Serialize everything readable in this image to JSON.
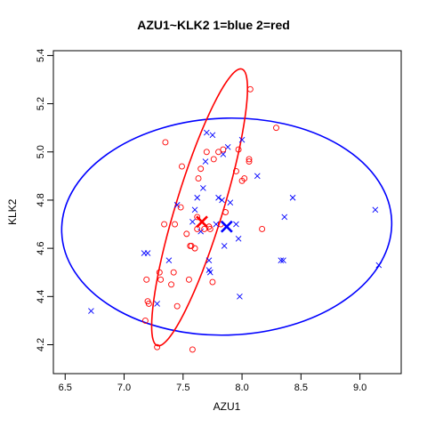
{
  "chart_data": {
    "type": "scatter",
    "title": "AZU1~KLK2 1=blue 2=red",
    "xlabel": "AZU1",
    "ylabel": "KLK2",
    "xlim": [
      6.4,
      9.35
    ],
    "ylim": [
      4.08,
      5.42
    ],
    "x_ticks": [
      "6.5",
      "7.0",
      "7.5",
      "8.0",
      "8.5",
      "9.0"
    ],
    "y_ticks": [
      "4.2",
      "4.4",
      "4.6",
      "4.8",
      "5.0",
      "5.2",
      "5.4"
    ],
    "grid": false,
    "legend": "none",
    "series": [
      {
        "name": "1",
        "color": "#0000ff",
        "marker": "x",
        "points": [
          [
            6.72,
            4.34
          ],
          [
            7.17,
            4.58
          ],
          [
            7.2,
            4.58
          ],
          [
            7.28,
            4.37
          ],
          [
            7.38,
            4.55
          ],
          [
            7.45,
            4.78
          ],
          [
            7.58,
            4.71
          ],
          [
            7.6,
            4.76
          ],
          [
            7.62,
            4.81
          ],
          [
            7.65,
            4.67
          ],
          [
            7.67,
            4.85
          ],
          [
            7.69,
            4.96
          ],
          [
            7.7,
            5.08
          ],
          [
            7.72,
            4.55
          ],
          [
            7.72,
            4.51
          ],
          [
            7.73,
            4.5
          ],
          [
            7.75,
            5.07
          ],
          [
            7.78,
            4.7
          ],
          [
            7.8,
            4.81
          ],
          [
            7.83,
            4.8
          ],
          [
            7.84,
            4.99
          ],
          [
            7.85,
            4.61
          ],
          [
            7.88,
            5.02
          ],
          [
            7.9,
            4.79
          ],
          [
            7.95,
            4.7
          ],
          [
            7.97,
            4.64
          ],
          [
            7.98,
            4.4
          ],
          [
            8.0,
            5.05
          ],
          [
            8.13,
            4.9
          ],
          [
            8.33,
            4.55
          ],
          [
            8.35,
            4.55
          ],
          [
            8.36,
            4.73
          ],
          [
            8.43,
            4.81
          ],
          [
            9.13,
            4.76
          ],
          [
            9.16,
            4.53
          ]
        ],
        "mean": [
          7.87,
          4.69
        ],
        "ellipse": {
          "center": [
            7.87,
            4.69
          ],
          "semi_x": 1.4,
          "semi_y": 0.45,
          "rotation_deg": -2
        }
      },
      {
        "name": "2",
        "color": "#ff0000",
        "marker": "o",
        "points": [
          [
            7.18,
            4.3
          ],
          [
            7.19,
            4.47
          ],
          [
            7.2,
            4.38
          ],
          [
            7.21,
            4.37
          ],
          [
            7.28,
            4.19
          ],
          [
            7.3,
            4.5
          ],
          [
            7.31,
            4.47
          ],
          [
            7.34,
            4.7
          ],
          [
            7.35,
            5.04
          ],
          [
            7.4,
            4.45
          ],
          [
            7.42,
            4.5
          ],
          [
            7.43,
            4.7
          ],
          [
            7.45,
            4.36
          ],
          [
            7.48,
            4.77
          ],
          [
            7.49,
            4.94
          ],
          [
            7.53,
            4.66
          ],
          [
            7.55,
            4.47
          ],
          [
            7.56,
            4.61
          ],
          [
            7.57,
            4.61
          ],
          [
            7.58,
            4.18
          ],
          [
            7.6,
            4.6
          ],
          [
            7.62,
            4.73
          ],
          [
            7.62,
            4.68
          ],
          [
            7.63,
            4.89
          ],
          [
            7.65,
            4.93
          ],
          [
            7.68,
            4.68
          ],
          [
            7.7,
            5.0
          ],
          [
            7.72,
            4.69
          ],
          [
            7.73,
            4.68
          ],
          [
            7.75,
            4.46
          ],
          [
            7.76,
            4.97
          ],
          [
            7.8,
            5.0
          ],
          [
            7.82,
            4.7
          ],
          [
            7.84,
            5.01
          ],
          [
            7.86,
            4.75
          ],
          [
            7.95,
            4.92
          ],
          [
            7.97,
            5.01
          ],
          [
            8.0,
            4.88
          ],
          [
            8.02,
            4.89
          ],
          [
            8.06,
            4.97
          ],
          [
            8.06,
            4.96
          ],
          [
            8.07,
            5.26
          ],
          [
            8.17,
            4.68
          ],
          [
            8.29,
            5.1
          ]
        ],
        "mean": [
          7.66,
          4.71
        ],
        "ellipse": {
          "center": [
            7.64,
            4.77
          ],
          "semi_x": 0.2,
          "semi_y": 0.6,
          "rotation_deg": 17
        }
      }
    ]
  }
}
